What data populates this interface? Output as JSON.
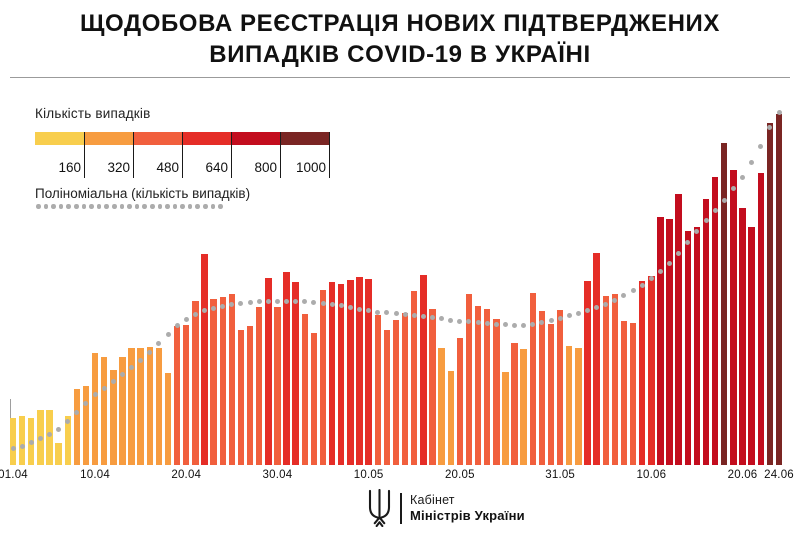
{
  "title": {
    "line1": "ЩОДОБОВА РЕЄСТРАЦІЯ НОВИХ ПІДТВЕРДЖЕНИХ",
    "line2": "ВИПАДКІВ COVID-19 В УКРАЇНІ"
  },
  "legend": {
    "scale_title": "Кількість випадків",
    "scale_stops": [
      {
        "value": "160",
        "color": "#F8CE4D"
      },
      {
        "value": "320",
        "color": "#F79C40"
      },
      {
        "value": "480",
        "color": "#F15F3D"
      },
      {
        "value": "640",
        "color": "#E52D27"
      },
      {
        "value": "800",
        "color": "#C30D1E"
      },
      {
        "value": "1000",
        "color": "#7A2523"
      }
    ],
    "trend_label": "Поліноміальна (кількість випадків)",
    "trend_dot_color": "#ACACAC",
    "trend_dot_count": 25
  },
  "footer": {
    "org_line1": "Кабінет",
    "org_line2": "Міністрів України"
  },
  "chart_data": {
    "type": "bar",
    "title": "Щодобова реєстрація нових підтверджених випадків COVID-19 в Україні",
    "ylabel": "Кількість випадків",
    "ylim": [
      0,
      1010
    ],
    "grid": false,
    "legend_position": "top-left",
    "x_tick_labels": [
      {
        "label": "01.04",
        "day": 0
      },
      {
        "label": "10.04",
        "day": 9
      },
      {
        "label": "20.04",
        "day": 19
      },
      {
        "label": "30.04",
        "day": 29
      },
      {
        "label": "10.05",
        "day": 39
      },
      {
        "label": "20.05",
        "day": 49
      },
      {
        "label": "31.05",
        "day": 60
      },
      {
        "label": "10.06",
        "day": 70
      },
      {
        "label": "20.06",
        "day": 80
      },
      {
        "label": "24.06",
        "day": 84
      }
    ],
    "categories": [
      "01.04",
      "02.04",
      "03.04",
      "04.04",
      "05.04",
      "06.04",
      "07.04",
      "08.04",
      "09.04",
      "10.04",
      "11.04",
      "12.04",
      "13.04",
      "14.04",
      "15.04",
      "16.04",
      "17.04",
      "18.04",
      "19.04",
      "20.04",
      "21.04",
      "22.04",
      "23.04",
      "24.04",
      "25.04",
      "26.04",
      "27.04",
      "28.04",
      "29.04",
      "30.04",
      "01.05",
      "02.05",
      "03.05",
      "04.05",
      "05.05",
      "06.05",
      "07.05",
      "08.05",
      "09.05",
      "10.05",
      "11.05",
      "12.05",
      "13.05",
      "14.05",
      "15.05",
      "16.05",
      "17.05",
      "18.05",
      "19.05",
      "20.05",
      "21.05",
      "22.05",
      "23.05",
      "24.05",
      "25.05",
      "26.05",
      "27.05",
      "28.05",
      "29.05",
      "30.05",
      "31.05",
      "01.06",
      "02.06",
      "03.06",
      "04.06",
      "05.06",
      "06.06",
      "07.06",
      "08.06",
      "09.06",
      "10.06",
      "11.06",
      "12.06",
      "13.06",
      "14.06",
      "15.06",
      "16.06",
      "17.06",
      "18.06",
      "19.06",
      "20.06",
      "21.06",
      "22.06",
      "23.06",
      "24.06"
    ],
    "values": [
      130,
      135,
      130,
      152,
      152,
      60,
      136,
      210,
      220,
      310,
      300,
      265,
      300,
      325,
      325,
      328,
      325,
      255,
      385,
      390,
      455,
      585,
      460,
      467,
      475,
      375,
      385,
      440,
      520,
      440,
      535,
      507,
      420,
      368,
      487,
      507,
      504,
      515,
      522,
      516,
      416,
      375,
      402,
      422,
      483,
      528,
      433,
      325,
      260,
      354,
      476,
      442,
      432,
      406,
      259,
      339,
      321,
      477,
      429,
      393,
      430,
      330,
      325,
      510,
      590,
      470,
      475,
      400,
      395,
      510,
      525,
      689,
      683,
      753,
      650,
      660,
      740,
      800,
      895,
      820,
      715,
      660,
      810,
      950,
      975
    ],
    "color_bands": [
      {
        "max": 160,
        "color": "#F8CE4D",
        "name": "yellow"
      },
      {
        "max": 332,
        "color": "#F79C40",
        "name": "orange"
      },
      {
        "max": 500,
        "color": "#F15F3D",
        "name": "tomato"
      },
      {
        "max": 640,
        "color": "#E52D27",
        "name": "red"
      },
      {
        "max": 850,
        "color": "#C30D1E",
        "name": "dark-red"
      },
      {
        "max": 9999,
        "color": "#7A2523",
        "name": "maroon"
      }
    ],
    "trend": {
      "type": "polynomial",
      "dot_color": "#ACACAC",
      "control_points": [
        [
          0,
          45
        ],
        [
          5,
          100
        ],
        [
          9,
          195
        ],
        [
          14,
          290
        ],
        [
          19,
          405
        ],
        [
          24,
          445
        ],
        [
          29,
          455
        ],
        [
          34,
          450
        ],
        [
          39,
          428
        ],
        [
          44,
          415
        ],
        [
          49,
          400
        ],
        [
          54,
          390
        ],
        [
          57,
          390
        ],
        [
          60,
          408
        ],
        [
          63,
          428
        ],
        [
          66,
          458
        ],
        [
          69,
          500
        ],
        [
          72,
          560
        ],
        [
          75,
          650
        ],
        [
          78,
          735
        ],
        [
          80,
          800
        ],
        [
          82,
          885
        ],
        [
          84,
          980
        ]
      ]
    }
  }
}
